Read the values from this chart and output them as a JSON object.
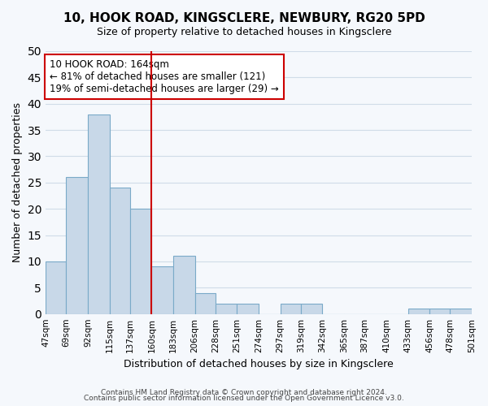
{
  "title": "10, HOOK ROAD, KINGSCLERE, NEWBURY, RG20 5PD",
  "subtitle": "Size of property relative to detached houses in Kingsclere",
  "xlabel": "Distribution of detached houses by size in Kingsclere",
  "ylabel": "Number of detached properties",
  "bar_color": "#c8d8e8",
  "bar_edge_color": "#7aaac8",
  "bins": [
    47,
    69,
    92,
    115,
    137,
    160,
    183,
    206,
    228,
    251,
    274,
    297,
    319,
    342,
    365,
    387,
    410,
    433,
    456,
    478,
    501
  ],
  "counts": [
    10,
    26,
    38,
    24,
    20,
    9,
    11,
    4,
    2,
    2,
    0,
    2,
    2,
    0,
    0,
    0,
    0,
    1,
    1,
    1
  ],
  "tick_labels": [
    "47sqm",
    "69sqm",
    "92sqm",
    "115sqm",
    "137sqm",
    "160sqm",
    "183sqm",
    "206sqm",
    "228sqm",
    "251sqm",
    "274sqm",
    "297sqm",
    "319sqm",
    "342sqm",
    "365sqm",
    "387sqm",
    "410sqm",
    "433sqm",
    "456sqm",
    "478sqm",
    "501sqm"
  ],
  "property_line_x": 160,
  "property_line_color": "#cc0000",
  "annotation_title": "10 HOOK ROAD: 164sqm",
  "annotation_line1": "← 81% of detached houses are smaller (121)",
  "annotation_line2": "19% of semi-detached houses are larger (29) →",
  "annotation_box_color": "#ffffff",
  "annotation_box_edge": "#cc0000",
  "ylim": [
    0,
    50
  ],
  "yticks": [
    0,
    5,
    10,
    15,
    20,
    25,
    30,
    35,
    40,
    45,
    50
  ],
  "footer1": "Contains HM Land Registry data © Crown copyright and database right 2024.",
  "footer2": "Contains public sector information licensed under the Open Government Licence v3.0.",
  "bg_color": "#f5f8fc",
  "grid_color": "#d0dce8"
}
